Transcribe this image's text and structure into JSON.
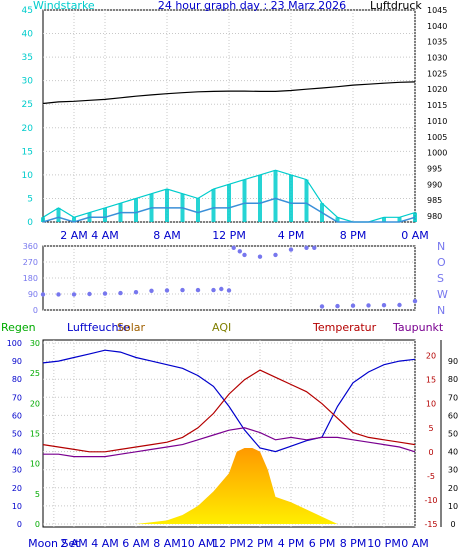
{
  "colors": {
    "background": "#ffffff",
    "frame": "#000000",
    "wind_teal": "#00cccc",
    "wind_avg": "#3a8fd8",
    "pressure": "#000000",
    "direction": "#7777ee",
    "humidity": "#0000cc",
    "temperature": "#b40000",
    "dewpoint": "#7a0090",
    "solar_fill_top": "#ff9900",
    "solar_fill_bottom": "#ffee00",
    "rain": "#00aa00",
    "axis_text_blue": "#0000cc",
    "axis_text_green": "#00aa00",
    "axis_text_red": "#b40000",
    "axis_text_purple": "#7a0090",
    "aqi": "#7f7f00",
    "solar_label": "#a06000"
  },
  "chart_data": [
    {
      "type": "line",
      "id": "wind_pressure",
      "title": "24 hour graph day : 23 Marz 2026",
      "left_axis_label": "Windstarke",
      "right_axis_label": "Luftdruck",
      "x_range_hours": [
        0,
        24
      ],
      "x_ticks": [
        "2 AM",
        "4 AM",
        "8 AM",
        "12 PM",
        "4 PM",
        "8 PM",
        "0 AM"
      ],
      "x_tick_hours": [
        2,
        4,
        8,
        12,
        16,
        20,
        24
      ],
      "left_ylim": [
        0,
        45
      ],
      "left_ticks": [
        "0",
        "5",
        "10",
        "15",
        "20",
        "25",
        "30",
        "35",
        "40",
        "45"
      ],
      "right_ylim": [
        980,
        1045
      ],
      "right_ticks": [
        "980",
        "985",
        "990",
        "995",
        "1000",
        "1005",
        "1010",
        "1015",
        "1020",
        "1025",
        "1030",
        "1035",
        "1040",
        "1045"
      ],
      "grid": true,
      "series": [
        {
          "role": "pressure",
          "axis": "right",
          "x": [
            0,
            1,
            2,
            3,
            4,
            5,
            6,
            7,
            8,
            9,
            10,
            11,
            12,
            13,
            14,
            15,
            16,
            17,
            18,
            19,
            20,
            21,
            22,
            23,
            24
          ],
          "y": [
            1015.5,
            1016.0,
            1016.2,
            1016.5,
            1016.8,
            1017.3,
            1017.8,
            1018.2,
            1018.6,
            1018.9,
            1019.2,
            1019.3,
            1019.4,
            1019.4,
            1019.3,
            1019.3,
            1019.6,
            1020.0,
            1020.4,
            1020.8,
            1021.3,
            1021.6,
            1021.9,
            1022.2,
            1022.3
          ]
        },
        {
          "role": "wind_gust",
          "axis": "left",
          "x": [
            0,
            1,
            2,
            3,
            4,
            5,
            6,
            7,
            8,
            9,
            10,
            11,
            12,
            13,
            14,
            15,
            16,
            17,
            18,
            19,
            20,
            21,
            22,
            23,
            24
          ],
          "y": [
            1,
            3,
            1,
            2,
            3,
            4,
            5,
            6,
            7,
            6,
            5,
            7,
            8,
            9,
            10,
            11,
            10,
            9,
            4,
            1,
            0,
            0,
            1,
            1,
            2
          ]
        },
        {
          "role": "wind_avg",
          "axis": "left",
          "x": [
            0,
            1,
            2,
            3,
            4,
            5,
            6,
            7,
            8,
            9,
            10,
            11,
            12,
            13,
            14,
            15,
            16,
            17,
            18,
            19,
            20,
            21,
            22,
            23,
            24
          ],
          "y": [
            0,
            1,
            0,
            1,
            1,
            2,
            2,
            3,
            3,
            3,
            2,
            3,
            3,
            4,
            4,
            5,
            4,
            4,
            2,
            0,
            0,
            0,
            0,
            0,
            1
          ]
        }
      ]
    },
    {
      "type": "scatter",
      "id": "wind_direction",
      "x_range_hours": [
        0,
        24
      ],
      "ylim": [
        0,
        360
      ],
      "left_ticks": [
        "0",
        "90",
        "180",
        "270",
        "360"
      ],
      "right_labels": [
        "N",
        "W",
        "S",
        "O",
        "N"
      ],
      "grid": true,
      "series": [
        {
          "role": "direction",
          "x": [
            0,
            1,
            2,
            3,
            4,
            5,
            6,
            7,
            8,
            9,
            10,
            11,
            11.5,
            12,
            12.3,
            12.7,
            13,
            14,
            15,
            16,
            17,
            17.5,
            18,
            19,
            20,
            21,
            22,
            23,
            24
          ],
          "y": [
            88,
            88,
            88,
            90,
            92,
            95,
            100,
            108,
            110,
            112,
            112,
            112,
            118,
            110,
            350,
            330,
            310,
            300,
            310,
            340,
            350,
            350,
            20,
            22,
            24,
            26,
            27,
            28,
            50
          ]
        }
      ]
    },
    {
      "type": "line",
      "id": "humidity_temperature_solar",
      "legend_labels": [
        "Regen",
        "Luftfeuchte",
        "Solar",
        "AQI",
        "Temperatur",
        "Taupunkt"
      ],
      "x_range_hours": [
        0,
        24
      ],
      "x_ticks": [
        "Moon Set",
        "2 AM",
        "4 AM",
        "6 AM",
        "8 AM",
        "10 AM",
        "12 PM",
        "2 PM",
        "4 PM",
        "6 PM",
        "8 PM",
        "10 PM",
        "0 AM"
      ],
      "x_tick_hours": [
        0.7,
        2,
        4,
        6,
        8,
        10,
        12,
        14,
        16,
        18,
        20,
        22,
        24
      ],
      "humidity_axis": {
        "ylim": [
          0,
          100
        ],
        "ticks": [
          "0",
          "10",
          "20",
          "30",
          "40",
          "50",
          "60",
          "70",
          "80",
          "90",
          "100"
        ]
      },
      "rain_axis": {
        "ylim": [
          0,
          30
        ],
        "ticks": [
          "0",
          "5",
          "10",
          "15",
          "20",
          "25",
          "30"
        ]
      },
      "temperature_axis": {
        "ylim": [
          -15,
          22
        ],
        "ticks": [
          "-15",
          "-10",
          "-5",
          "0",
          "5",
          "10",
          "15",
          "20"
        ]
      },
      "right_outer_axis": {
        "ylim": [
          0,
          100
        ],
        "ticks": [
          "0",
          "10",
          "20",
          "30",
          "40",
          "50",
          "60",
          "70",
          "80",
          "90"
        ]
      },
      "grid": true,
      "series": [
        {
          "role": "humidity",
          "axis": "humidity",
          "x": [
            0,
            1,
            2,
            3,
            4,
            5,
            6,
            7,
            8,
            9,
            10,
            11,
            12,
            13,
            14,
            15,
            16,
            17,
            18,
            19,
            20,
            21,
            22,
            23,
            24
          ],
          "y": [
            89,
            90,
            92,
            94,
            96,
            95,
            92,
            90,
            88,
            86,
            82,
            76,
            65,
            52,
            42,
            40,
            43,
            46,
            48,
            65,
            78,
            84,
            88,
            90,
            91
          ]
        },
        {
          "role": "temperature",
          "axis": "temperature",
          "x": [
            0,
            1,
            2,
            3,
            4,
            5,
            6,
            7,
            8,
            9,
            10,
            11,
            12,
            13,
            14,
            15,
            16,
            17,
            18,
            19,
            20,
            21,
            22,
            23,
            24
          ],
          "y": [
            1.5,
            1.0,
            0.5,
            0.0,
            0.0,
            0.5,
            1.0,
            1.5,
            2.0,
            3.0,
            5.0,
            8.0,
            12.0,
            15.0,
            17.0,
            15.5,
            14.0,
            12.5,
            10.0,
            7.0,
            4.0,
            3.0,
            2.5,
            2.0,
            1.5
          ]
        },
        {
          "role": "dewpoint",
          "axis": "temperature",
          "x": [
            0,
            1,
            2,
            3,
            4,
            5,
            6,
            7,
            8,
            9,
            10,
            11,
            12,
            13,
            14,
            15,
            16,
            17,
            18,
            19,
            20,
            21,
            22,
            23,
            24
          ],
          "y": [
            -0.5,
            -0.5,
            -1.0,
            -1.0,
            -1.0,
            -0.5,
            0.0,
            0.5,
            1.0,
            1.5,
            2.5,
            3.5,
            4.5,
            5.0,
            4.0,
            2.5,
            3.0,
            2.5,
            3.0,
            3.0,
            2.5,
            2.0,
            1.5,
            1.0,
            0.0
          ]
        },
        {
          "role": "solar",
          "axis": "right_outer",
          "x": [
            6,
            7,
            8,
            9,
            10,
            11,
            12,
            12.5,
            13,
            13.5,
            14,
            14.5,
            15,
            16,
            17,
            18,
            18.5,
            19
          ],
          "y": [
            0,
            1,
            2,
            5,
            10,
            18,
            28,
            40,
            42,
            42,
            40,
            30,
            15,
            12,
            8,
            4,
            2,
            0
          ]
        }
      ]
    }
  ]
}
